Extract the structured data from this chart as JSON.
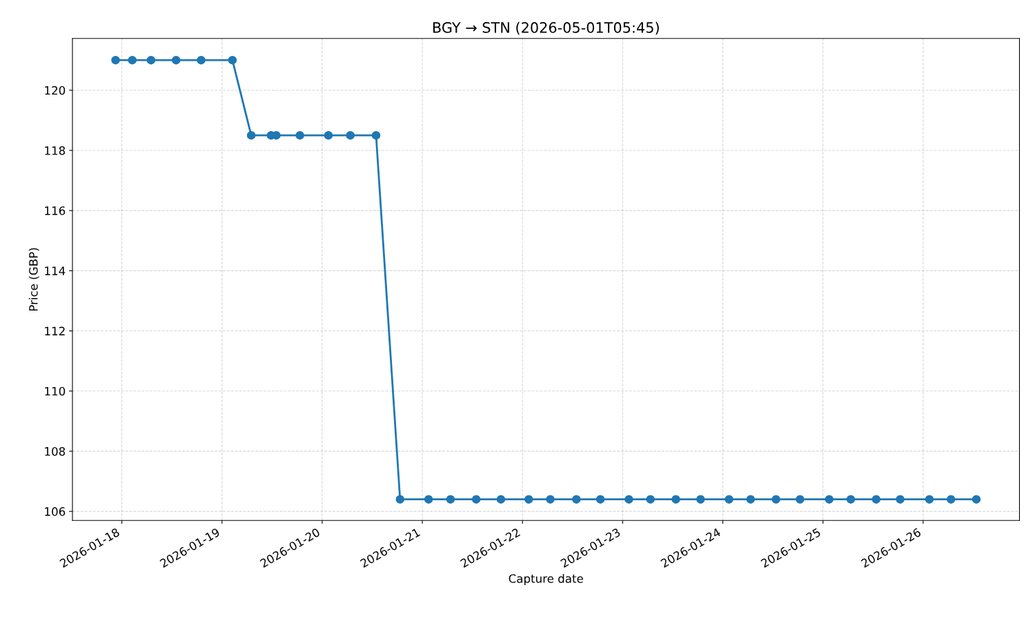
{
  "chart_data": {
    "type": "line",
    "title": "BGY → STN (2026-05-01T05:45)",
    "xlabel": "Capture date",
    "ylabel": "Price (GBP)",
    "x": [
      "2026-01-17T22:30",
      "2026-01-18T02:30",
      "2026-01-18T07:00",
      "2026-01-18T13:00",
      "2026-01-18T19:00",
      "2026-01-19T02:30",
      "2026-01-19T07:00",
      "2026-01-19T11:45",
      "2026-01-19T13:00",
      "2026-01-19T18:40",
      "2026-01-20T01:30",
      "2026-01-20T06:45",
      "2026-01-20T12:55",
      "2026-01-20T18:40",
      "2026-01-21T01:30",
      "2026-01-21T06:45",
      "2026-01-21T12:55",
      "2026-01-21T18:50",
      "2026-01-22T01:30",
      "2026-01-22T06:40",
      "2026-01-22T12:55",
      "2026-01-22T18:40",
      "2026-01-23T01:30",
      "2026-01-23T06:40",
      "2026-01-23T12:45",
      "2026-01-23T18:40",
      "2026-01-24T01:30",
      "2026-01-24T06:40",
      "2026-01-24T12:45",
      "2026-01-24T18:30",
      "2026-01-25T01:30",
      "2026-01-25T06:40",
      "2026-01-25T12:45",
      "2026-01-25T18:30",
      "2026-01-26T01:30",
      "2026-01-26T06:40",
      "2026-01-26T12:45"
    ],
    "series": [
      {
        "color": "#1f77b4",
        "values": [
          121,
          121,
          121,
          121,
          121,
          121,
          118.5,
          118.5,
          118.5,
          118.5,
          118.5,
          118.5,
          118.5,
          106.4,
          106.4,
          106.4,
          106.4,
          106.4,
          106.4,
          106.4,
          106.4,
          106.4,
          106.4,
          106.4,
          106.4,
          106.4,
          106.4,
          106.4,
          106.4,
          106.4,
          106.4,
          106.4,
          106.4,
          106.4,
          106.4,
          106.4,
          106.4
        ]
      }
    ],
    "xlim": [
      "2026-01-17T12:10",
      "2026-01-26T23:05"
    ],
    "xticks": [
      "2026-01-18",
      "2026-01-19",
      "2026-01-20",
      "2026-01-21",
      "2026-01-22",
      "2026-01-23",
      "2026-01-24",
      "2026-01-25",
      "2026-01-26"
    ],
    "ylim": [
      105.7,
      121.72
    ],
    "yticks": [
      106,
      108,
      110,
      112,
      114,
      116,
      118,
      120
    ],
    "grid": true,
    "marker": "circle",
    "line_style": "solid"
  }
}
